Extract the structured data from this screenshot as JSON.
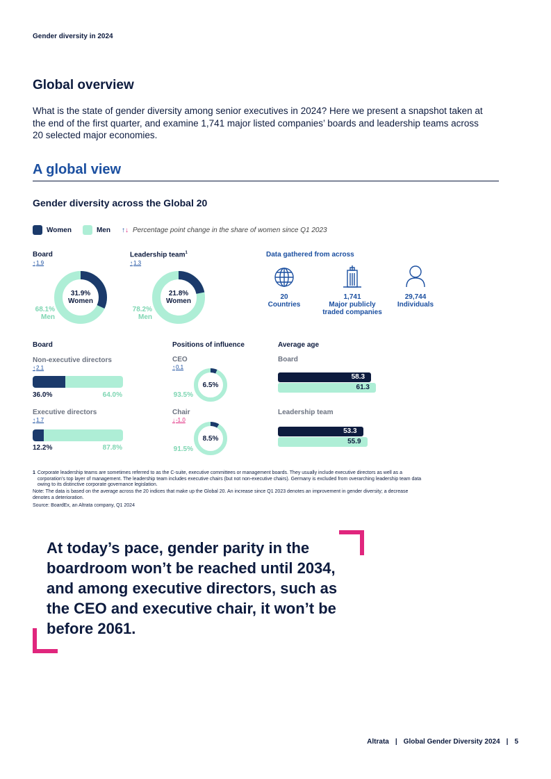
{
  "header": {
    "running_title": "Gender diversity in 2024"
  },
  "overview": {
    "title": "Global overview",
    "body": "What is the state of gender diversity among senior executives in 2024? Here we present a snapshot taken at the end of the first quarter, and examine 1,741 major listed companies’ boards and leadership teams across 20 selected major economies."
  },
  "section": {
    "title": "A global view"
  },
  "figure": {
    "title": "Gender diversity across the Global 20",
    "legend": {
      "women": "Women",
      "men": "Men",
      "change_note": "Percentage point change in the share of women since Q1 2023"
    },
    "board_donut": {
      "label": "Board",
      "change": "1.9",
      "women_pct": "31.9%",
      "women_label": "Women",
      "men_pct": "68.1%",
      "men_label": "Men",
      "women_value": 31.9
    },
    "leadership_donut": {
      "label": "Leadership team",
      "sup": "1",
      "change": "1.3",
      "women_pct": "21.8%",
      "women_label": "Women",
      "men_pct": "78.2%",
      "men_label": "Men",
      "women_value": 21.8
    },
    "data_gathered": {
      "title": "Data gathered from across",
      "countries": {
        "value": "20",
        "label": "Countries",
        "icon": "globe-icon"
      },
      "companies": {
        "value": "1,741",
        "label1": "Major publicly",
        "label2": "traded companies",
        "icon": "building-icon"
      },
      "individuals": {
        "value": "29,744",
        "label": "Individuals",
        "icon": "person-icon"
      }
    },
    "board_section": {
      "title": "Board",
      "ned": {
        "label": "Non-executive directors",
        "change": "2.1",
        "women_pct": "36.0%",
        "men_pct": "64.0%",
        "women_value": 36.0
      },
      "ed": {
        "label": "Executive directors",
        "change": "1.7",
        "women_pct": "12.2%",
        "men_pct": "87.8%",
        "women_value": 12.2
      }
    },
    "positions": {
      "title": "Positions of influence",
      "ceo": {
        "label": "CEO",
        "change": "0.1",
        "women_pct": "6.5%",
        "men_pct": "93.5%",
        "women_value": 6.5
      },
      "chair": {
        "label": "Chair",
        "change": "-1.0",
        "women_pct": "8.5%",
        "men_pct": "91.5%",
        "women_value": 8.5
      }
    },
    "average_age": {
      "title": "Average age",
      "board": {
        "label": "Board",
        "women": "58.3",
        "men": "61.3",
        "women_value": 58.3,
        "men_value": 61.3
      },
      "leadership": {
        "label": "Leadership team",
        "women": "53.3",
        "men": "55.9",
        "women_value": 53.3,
        "men_value": 55.9
      }
    },
    "footnotes": {
      "fn1_num": "1",
      "fn1": "Corporate leadership teams are sometimes referred to as the C-suite, executive committees or management boards. They usually include executive directors as well as a corporation’s top layer of management. The leadership team includes executive chairs (but not non-executive chairs). Germany is excluded from overarching leadership team data owing to its distinctive corporate governance legislation.",
      "note": "Note: The data is based on the average across the 20 indices that make up the Global 20. An increase since Q1 2023 denotes an improvement in gender diversity; a decrease denotes a deterioration.",
      "source": "Source: BoardEx, an Altrata company, Q1 2024"
    }
  },
  "quote": {
    "text": "At today’s pace, gender parity in the boardroom won’t be reached until 2034, and among executive directors, such as the CEO and executive chair, it won’t be before 2061."
  },
  "footer": {
    "brand": "Altrata",
    "sep1": "|",
    "report": "Global Gender Diversity 2024",
    "sep2": "|",
    "page": "5"
  },
  "colors": {
    "navy": "#0d1b3e",
    "dark_bar": "#1b3a6b",
    "mint": "#aeeed6",
    "mint_text": "#7fd6b3",
    "blue": "#1b4fa0",
    "pink": "#e0267d"
  }
}
